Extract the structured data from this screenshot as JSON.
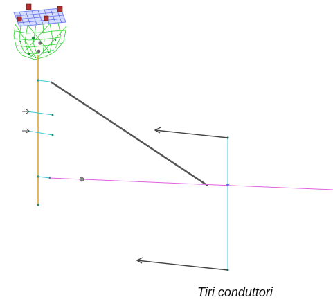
{
  "caption": "Tiri conduttori",
  "colors": {
    "background": "#ffffff",
    "pole": "#d8a428",
    "crossarm_cyan": "#40c8d8",
    "conductor_magenta": "#e060e0",
    "stay_wire": "#555555",
    "force_arrow": "#444444",
    "node": "#2a8a7a",
    "mesh_green": "#30d030",
    "mesh_blue": "#5a6ee8",
    "anchor_red": "#b03030"
  }
}
